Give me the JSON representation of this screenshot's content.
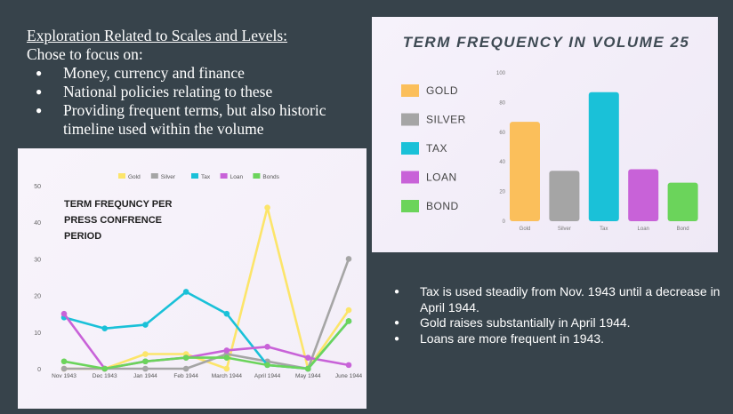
{
  "intro": {
    "heading": "Exploration Related to Scales and Levels:",
    "subheading": "Chose to focus on:",
    "items": [
      "Money, currency and finance",
      "National policies relating to these",
      "Providing frequent terms, but also historic timeline used within the volume"
    ]
  },
  "summary_bullets": [
    "Tax is used steadily from Nov. 1943 until a decrease in April 1944.",
    "Gold raises substantially in April 1944.",
    "Loans are more frequent in 1943."
  ],
  "colors": {
    "background": "#37434b",
    "gold": "#fbbf5b",
    "silver": "#a5a5a5",
    "tax": "#1ac1d8",
    "loan": "#c862d8",
    "bonds": "#6bd45b",
    "line_gold": "#fce56a"
  },
  "chart_data": [
    {
      "type": "line",
      "title": "TERM FREQUNCY PER PRESS CONFRENCE PERIOD",
      "title_lines": [
        "TERM FREQUNCY PER",
        "PRESS CONFRENCE",
        "PERIOD"
      ],
      "x": [
        "Nov 1943",
        "Dec 1943",
        "Jan 1944",
        "Feb 1944",
        "March 1944",
        "April 1944",
        "May 1944",
        "June 1944"
      ],
      "ylim": [
        0,
        50
      ],
      "yticks": [
        "0",
        "10",
        "20",
        "30",
        "40",
        "50"
      ],
      "legend_position": "top",
      "grid": false,
      "series": [
        {
          "name": "Gold",
          "color": "#fce56a",
          "values": [
            0,
            0,
            4,
            4,
            0,
            44,
            0,
            16
          ]
        },
        {
          "name": "Silver",
          "color": "#a5a5a5",
          "values": [
            0,
            0,
            0,
            0,
            4,
            2,
            0,
            30
          ]
        },
        {
          "name": "Tax",
          "color": "#1ac1d8",
          "values": [
            14,
            11,
            12,
            21,
            15,
            1,
            0,
            13
          ]
        },
        {
          "name": "Loan",
          "color": "#c862d8",
          "values": [
            15,
            0,
            2,
            3,
            5,
            6,
            3,
            1
          ]
        },
        {
          "name": "Bonds",
          "color": "#6bd45b",
          "values": [
            2,
            0,
            2,
            3,
            3,
            1,
            0,
            13
          ]
        }
      ]
    },
    {
      "type": "bar",
      "title": "TERM FREQUENCY IN VOLUME 25",
      "categories": [
        "Gold",
        "Silver",
        "Tax",
        "Loan",
        "Bond"
      ],
      "legend_labels": [
        "GOLD",
        "SILVER",
        "TAX",
        "LOAN",
        "BOND"
      ],
      "values": [
        67,
        34,
        87,
        35,
        26
      ],
      "colors": [
        "#fbbf5b",
        "#a5a5a5",
        "#1ac1d8",
        "#c862d8",
        "#6bd45b"
      ],
      "ylim": [
        0,
        100
      ],
      "yticks": [
        "0",
        "20",
        "40",
        "60",
        "80",
        "100"
      ],
      "legend_position": "left",
      "grid": false
    }
  ]
}
